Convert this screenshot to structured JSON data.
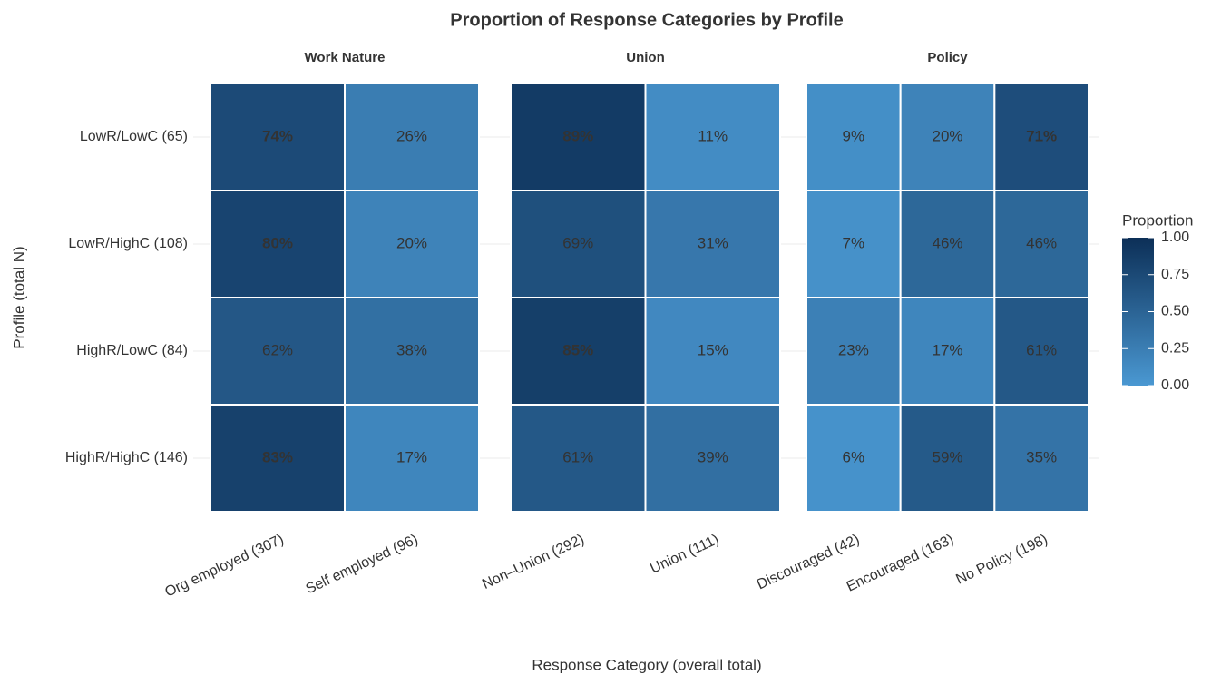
{
  "chart_data": {
    "type": "heatmap",
    "title": "Proportion of Response Categories by Profile",
    "x_label": "Response Category (overall total)",
    "y_label": "Profile (total N)",
    "rows": [
      "LowR/LowC (65)",
      "LowR/HighC (108)",
      "HighR/LowC (84)",
      "HighR/HighC (146)"
    ],
    "facets": [
      {
        "name": "Work Nature",
        "categories": [
          "Org employed (307)",
          "Self employed (96)"
        ],
        "values": [
          [
            0.74,
            0.26
          ],
          [
            0.8,
            0.2
          ],
          [
            0.62,
            0.38
          ],
          [
            0.83,
            0.17
          ]
        ],
        "value_labels": [
          [
            "74%",
            "26%"
          ],
          [
            "80%",
            "20%"
          ],
          [
            "62%",
            "38%"
          ],
          [
            "83%",
            "17%"
          ]
        ]
      },
      {
        "name": "Union",
        "categories": [
          "Non–Union (292)",
          "Union (111)"
        ],
        "values": [
          [
            0.89,
            0.11
          ],
          [
            0.69,
            0.31
          ],
          [
            0.85,
            0.15
          ],
          [
            0.61,
            0.39
          ]
        ],
        "value_labels": [
          [
            "89%",
            "11%"
          ],
          [
            "69%",
            "31%"
          ],
          [
            "85%",
            "15%"
          ],
          [
            "61%",
            "39%"
          ]
        ]
      },
      {
        "name": "Policy",
        "categories": [
          "Discouraged (42)",
          "Encouraged (163)",
          "No Policy (198)"
        ],
        "values": [
          [
            0.09,
            0.2,
            0.71
          ],
          [
            0.07,
            0.46,
            0.46
          ],
          [
            0.23,
            0.17,
            0.61
          ],
          [
            0.06,
            0.59,
            0.35
          ]
        ],
        "value_labels": [
          [
            "9%",
            "20%",
            "71%"
          ],
          [
            "7%",
            "46%",
            "46%"
          ],
          [
            "23%",
            "17%",
            "61%"
          ],
          [
            "6%",
            "59%",
            "35%"
          ]
        ]
      }
    ],
    "legend": {
      "title": "Proportion",
      "ticks": [
        {
          "value": 0,
          "label": "0.00"
        },
        {
          "value": 0.25,
          "label": "0.25"
        },
        {
          "value": 0.5,
          "label": "0.50"
        },
        {
          "value": 0.75,
          "label": "0.75"
        },
        {
          "value": 1,
          "label": "1.00"
        }
      ]
    },
    "colorlim": [
      0,
      1
    ],
    "color_low": "#4a98d2",
    "color_high": "#0c2f57",
    "bold_above": 0.7,
    "grid": true
  }
}
